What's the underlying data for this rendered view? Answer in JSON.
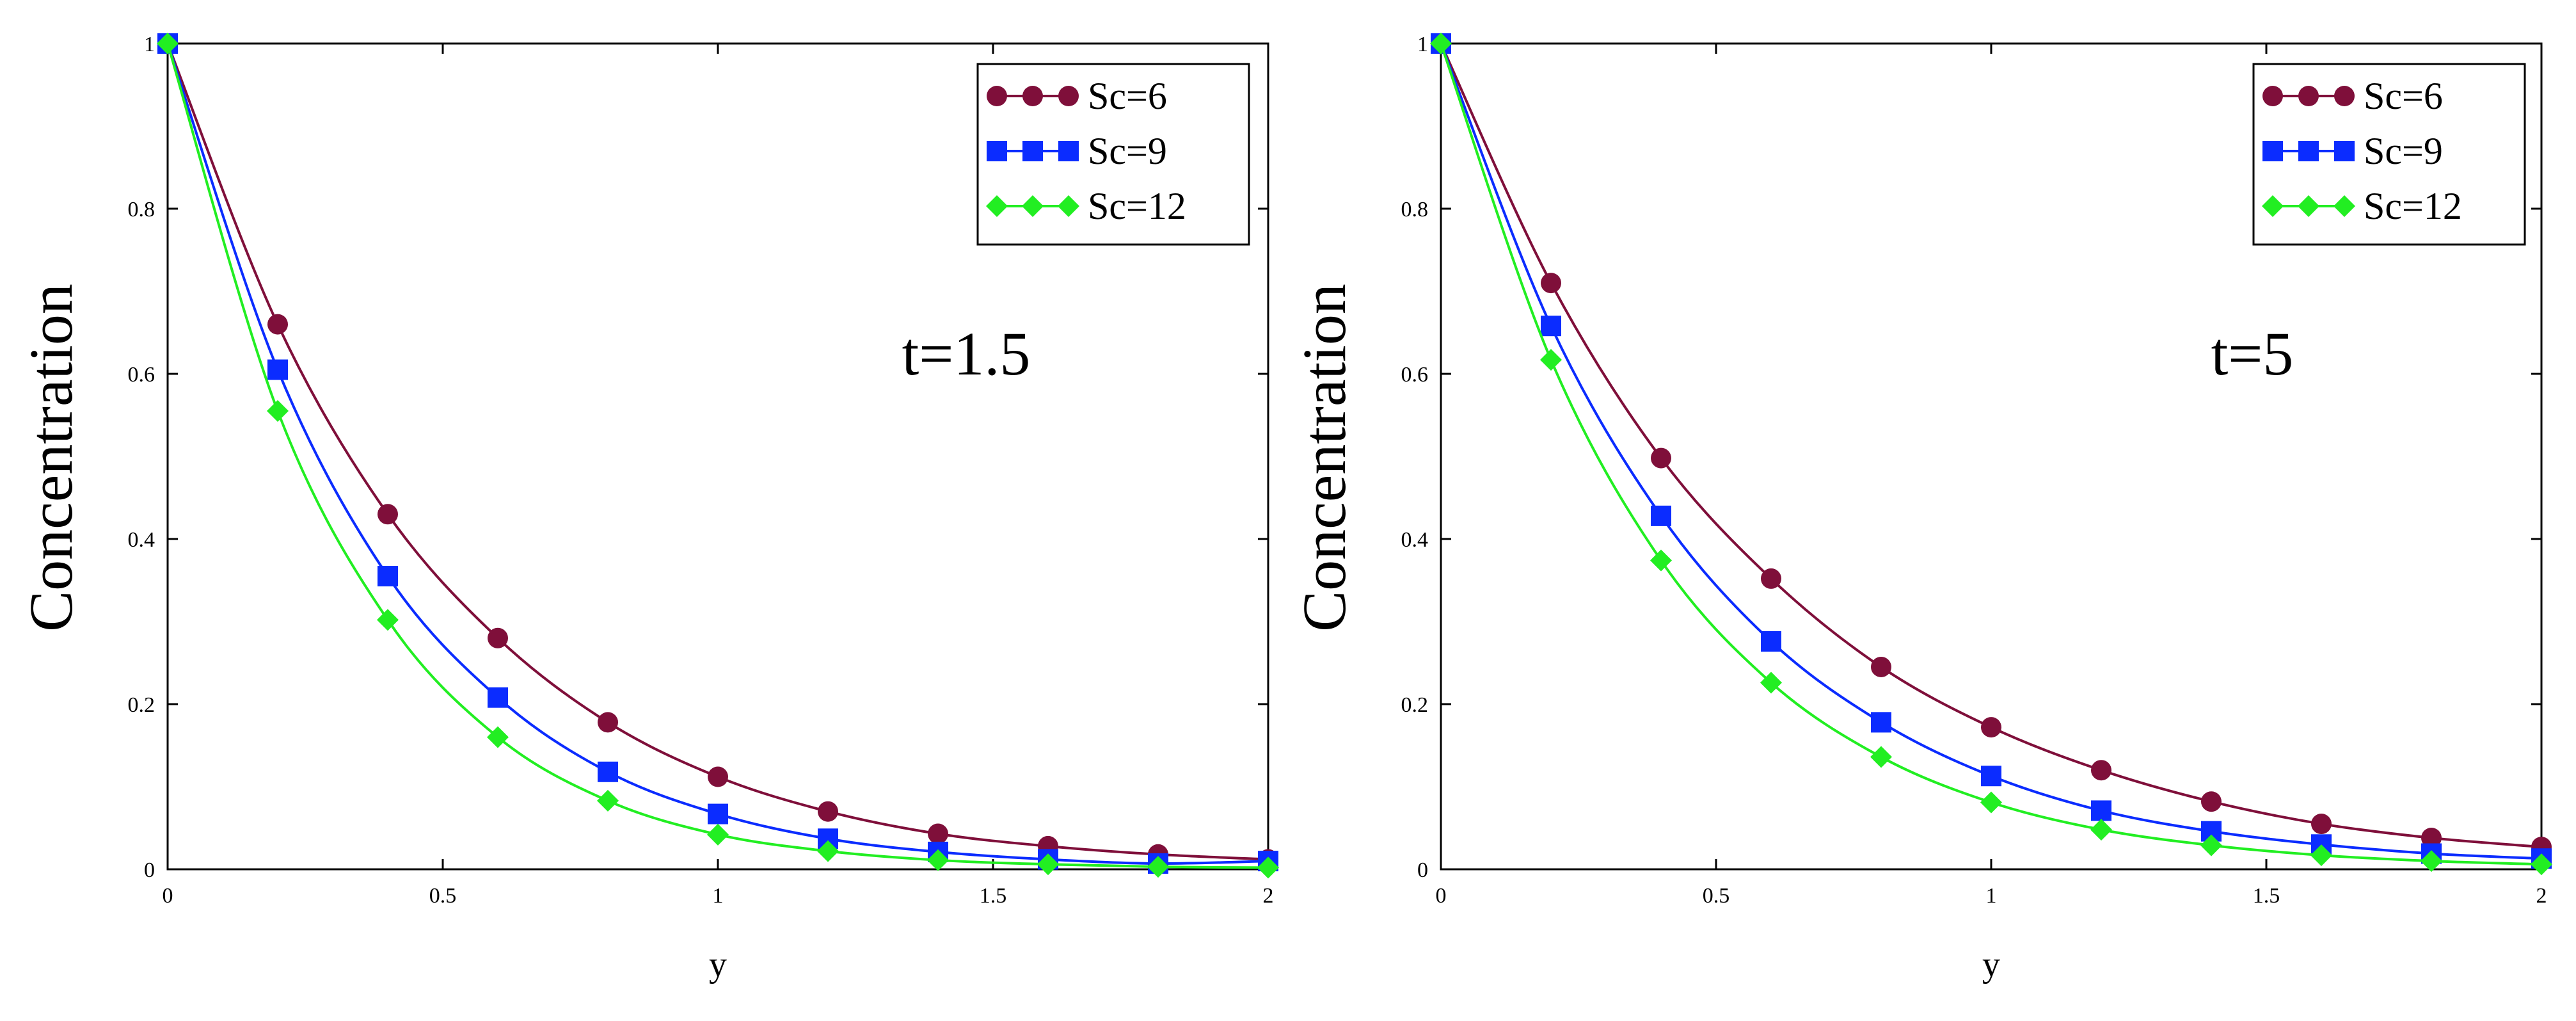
{
  "chart_data": [
    {
      "type": "line",
      "xlabel": "y",
      "ylabel": "Concentration",
      "xlim": [
        0,
        2
      ],
      "ylim": [
        0,
        1
      ],
      "xticks": [
        "0",
        "0.5",
        "1",
        "1.5",
        "2"
      ],
      "yticks": [
        "0",
        "0.2",
        "0.4",
        "0.6",
        "0.8",
        "1"
      ],
      "annotation": "t=1.5",
      "legend": "top-right",
      "series": [
        {
          "name": "Sc=6",
          "color": "#7f0f3a",
          "marker": "circle",
          "x": [
            0,
            0.2,
            0.4,
            0.6,
            0.8,
            1.0,
            1.2,
            1.4,
            1.6,
            1.8,
            2.0
          ],
          "values": [
            1.0,
            0.66,
            0.43,
            0.28,
            0.178,
            0.112,
            0.07,
            0.043,
            0.028,
            0.018,
            0.012
          ]
        },
        {
          "name": "Sc=9",
          "color": "#0b2cff",
          "marker": "square",
          "x": [
            0,
            0.2,
            0.4,
            0.6,
            0.8,
            1.0,
            1.2,
            1.4,
            1.6,
            1.8,
            2.0
          ],
          "values": [
            1.0,
            0.605,
            0.355,
            0.208,
            0.118,
            0.067,
            0.037,
            0.021,
            0.012,
            0.007,
            0.01
          ]
        },
        {
          "name": "Sc=12",
          "color": "#22ee22",
          "marker": "diamond",
          "x": [
            0,
            0.2,
            0.4,
            0.6,
            0.8,
            1.0,
            1.2,
            1.4,
            1.6,
            1.8,
            2.0
          ],
          "values": [
            1.0,
            0.555,
            0.302,
            0.16,
            0.083,
            0.042,
            0.022,
            0.011,
            0.006,
            0.003,
            0.002
          ]
        }
      ]
    },
    {
      "type": "line",
      "xlabel": "y",
      "ylabel": "Concentration",
      "xlim": [
        0,
        2
      ],
      "ylim": [
        0,
        1
      ],
      "xticks": [
        "0",
        "0.5",
        "1",
        "1.5",
        "2"
      ],
      "yticks": [
        "0",
        "0.2",
        "0.4",
        "0.6",
        "0.8",
        "1"
      ],
      "annotation": "t=5",
      "legend": "top-right",
      "series": [
        {
          "name": "Sc=6",
          "color": "#7f0f3a",
          "marker": "circle",
          "x": [
            0,
            0.2,
            0.4,
            0.6,
            0.8,
            1.0,
            1.2,
            1.4,
            1.6,
            1.8,
            2.0
          ],
          "values": [
            1.0,
            0.71,
            0.498,
            0.352,
            0.245,
            0.172,
            0.12,
            0.082,
            0.055,
            0.038,
            0.027
          ]
        },
        {
          "name": "Sc=9",
          "color": "#0b2cff",
          "marker": "square",
          "x": [
            0,
            0.2,
            0.4,
            0.6,
            0.8,
            1.0,
            1.2,
            1.4,
            1.6,
            1.8,
            2.0
          ],
          "values": [
            1.0,
            0.658,
            0.428,
            0.276,
            0.178,
            0.113,
            0.071,
            0.046,
            0.03,
            0.019,
            0.013
          ]
        },
        {
          "name": "Sc=12",
          "color": "#22ee22",
          "marker": "diamond",
          "x": [
            0,
            0.2,
            0.4,
            0.6,
            0.8,
            1.0,
            1.2,
            1.4,
            1.6,
            1.8,
            2.0
          ],
          "values": [
            1.0,
            0.617,
            0.374,
            0.226,
            0.136,
            0.081,
            0.048,
            0.029,
            0.017,
            0.01,
            0.006
          ]
        }
      ]
    }
  ]
}
